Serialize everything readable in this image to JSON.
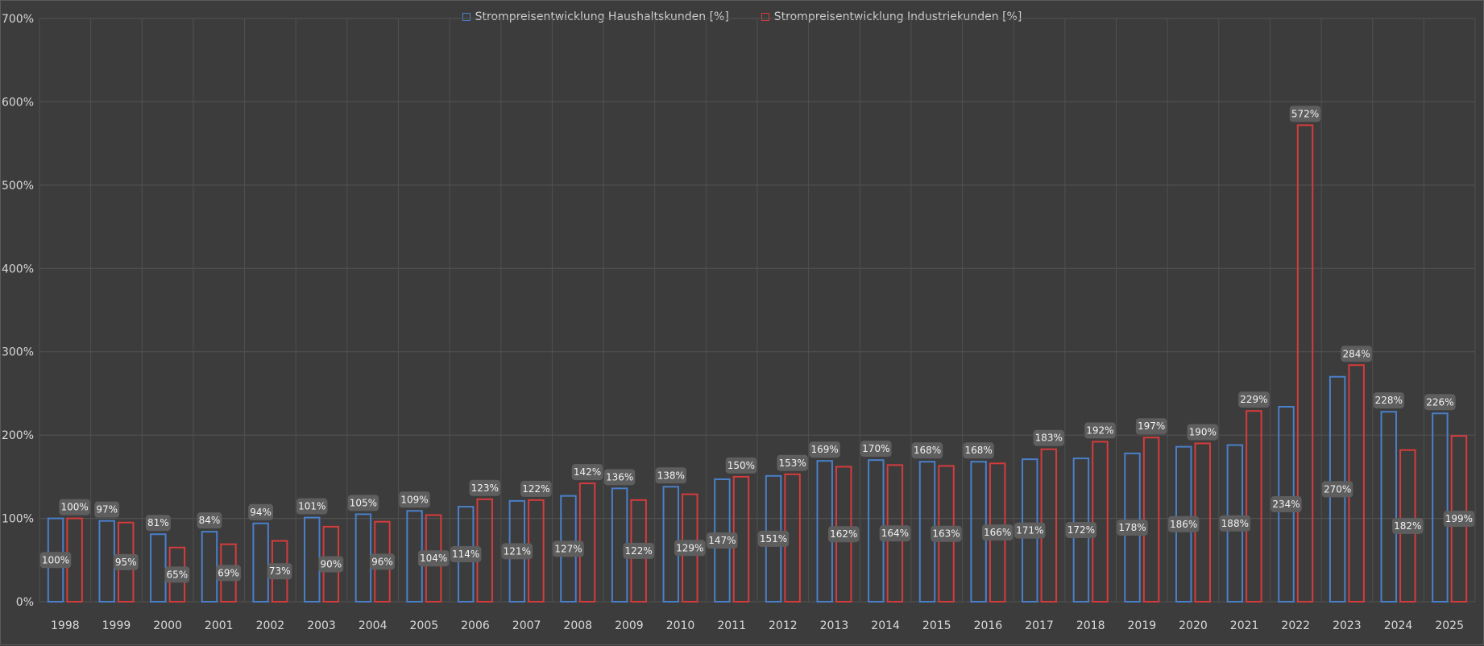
{
  "chart_data": {
    "type": "bar",
    "categories": [
      "1998",
      "1999",
      "2000",
      "2001",
      "2002",
      "2003",
      "2004",
      "2005",
      "2006",
      "2007",
      "2008",
      "2009",
      "2010",
      "2011",
      "2012",
      "2013",
      "2014",
      "2015",
      "2016",
      "2017",
      "2018",
      "2019",
      "2020",
      "2021",
      "2022",
      "2023",
      "2024",
      "2025"
    ],
    "series": [
      {
        "name": "Strompreisentwicklung Haushaltskunden [%]",
        "color": "#4a7fc9",
        "values": [
          100,
          97,
          81,
          84,
          94,
          101,
          105,
          109,
          114,
          121,
          127,
          136,
          138,
          147,
          151,
          169,
          170,
          168,
          168,
          171,
          172,
          178,
          186,
          188,
          234,
          270,
          228,
          226
        ]
      },
      {
        "name": "Strompreisentwicklung Industriekunden [%]",
        "color": "#d63b3b",
        "values": [
          100,
          95,
          65,
          69,
          73,
          90,
          96,
          104,
          123,
          122,
          142,
          122,
          129,
          150,
          153,
          162,
          164,
          163,
          166,
          183,
          192,
          197,
          190,
          229,
          572,
          284,
          182,
          199
        ]
      }
    ],
    "ylim": [
      0,
      700
    ],
    "yticks": [
      "0%",
      "100%",
      "200%",
      "300%",
      "400%",
      "500%",
      "600%",
      "700%"
    ],
    "value_suffix": "%",
    "grid": true,
    "legend_position": "top-center"
  }
}
